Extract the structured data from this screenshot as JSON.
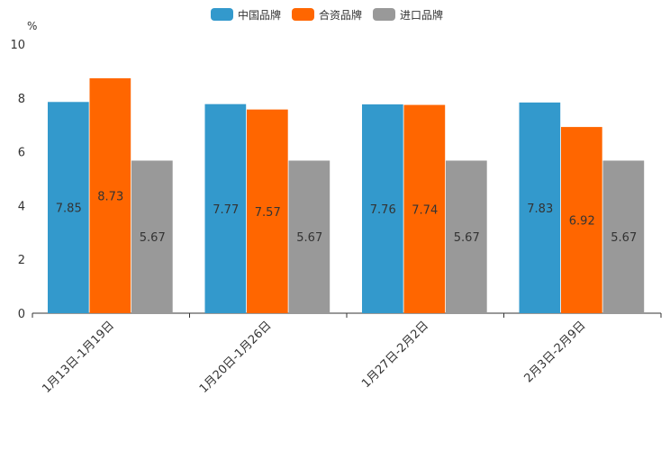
{
  "chart_data": {
    "type": "bar",
    "title": "",
    "xlabel": "",
    "ylabel": "%",
    "ylim": [
      0,
      10
    ],
    "yticks": [
      0,
      2,
      4,
      6,
      8,
      10
    ],
    "categories": [
      "1月13日-1月19日",
      "1月20日-1月26日",
      "1月27日-2月2日",
      "2月3日-2月9日"
    ],
    "legend_position": "top-center",
    "series": [
      {
        "name": "中国品牌",
        "color": "#3399cc",
        "values": [
          7.85,
          7.77,
          7.76,
          7.83
        ]
      },
      {
        "name": "合资品牌",
        "color": "#ff6600",
        "values": [
          8.73,
          7.57,
          7.74,
          6.92
        ]
      },
      {
        "name": "进口品牌",
        "color": "#999999",
        "values": [
          5.67,
          5.67,
          5.67,
          5.67
        ]
      }
    ]
  }
}
